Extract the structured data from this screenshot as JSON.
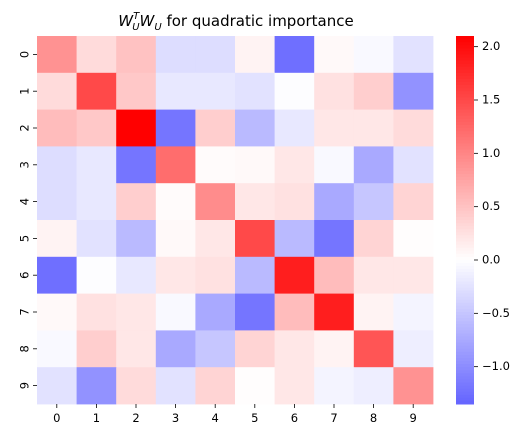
{
  "chart_data": {
    "type": "heatmap",
    "title": {
      "w_label": "W",
      "sup_label": "T",
      "sub_label": "U",
      "w2_label": "W",
      "sub2_label": "U",
      "rest": " for quadratic importance"
    },
    "x_ticks": [
      "0",
      "1",
      "2",
      "3",
      "4",
      "5",
      "6",
      "7",
      "8",
      "9"
    ],
    "y_ticks": [
      "0",
      "1",
      "2",
      "3",
      "4",
      "5",
      "6",
      "7",
      "8",
      "9"
    ],
    "values": [
      [
        0.9,
        0.3,
        0.5,
        -0.3,
        -0.3,
        0.1,
        -1.25,
        0.05,
        -0.05,
        -0.25
      ],
      [
        0.3,
        1.5,
        0.45,
        -0.2,
        -0.2,
        -0.25,
        -0.02,
        0.25,
        0.4,
        -0.95
      ],
      [
        0.55,
        0.45,
        2.1,
        -1.2,
        0.4,
        -0.6,
        -0.2,
        0.2,
        0.2,
        0.3
      ],
      [
        -0.3,
        -0.2,
        -1.2,
        1.2,
        0.03,
        0.05,
        0.2,
        -0.05,
        -0.75,
        -0.25
      ],
      [
        -0.3,
        -0.2,
        0.4,
        0.03,
        0.95,
        0.2,
        0.25,
        -0.75,
        -0.5,
        0.35
      ],
      [
        0.1,
        -0.25,
        -0.6,
        0.05,
        0.2,
        1.5,
        -0.6,
        -1.2,
        0.35,
        0.02
      ],
      [
        -1.25,
        -0.02,
        -0.2,
        0.2,
        0.25,
        -0.6,
        1.85,
        0.55,
        0.2,
        0.2
      ],
      [
        0.05,
        0.25,
        0.2,
        -0.05,
        -0.75,
        -1.2,
        0.55,
        1.85,
        0.1,
        -0.1
      ],
      [
        -0.05,
        0.4,
        0.2,
        -0.75,
        -0.5,
        0.35,
        0.2,
        0.1,
        1.4,
        -0.15
      ],
      [
        -0.25,
        -0.95,
        0.3,
        -0.25,
        0.35,
        0.02,
        0.2,
        -0.1,
        -0.15,
        0.9
      ]
    ],
    "vmin": -1.35,
    "vmax": 2.1,
    "center": 0,
    "colormap": "bwr",
    "colorbar_ticks": [
      "2.0",
      "1.5",
      "1.0",
      "0.5",
      "0.0",
      "−0.5",
      "−1.0"
    ],
    "colorbar_tick_values": [
      2.0,
      1.5,
      1.0,
      0.5,
      0.0,
      -0.5,
      -1.0
    ]
  }
}
